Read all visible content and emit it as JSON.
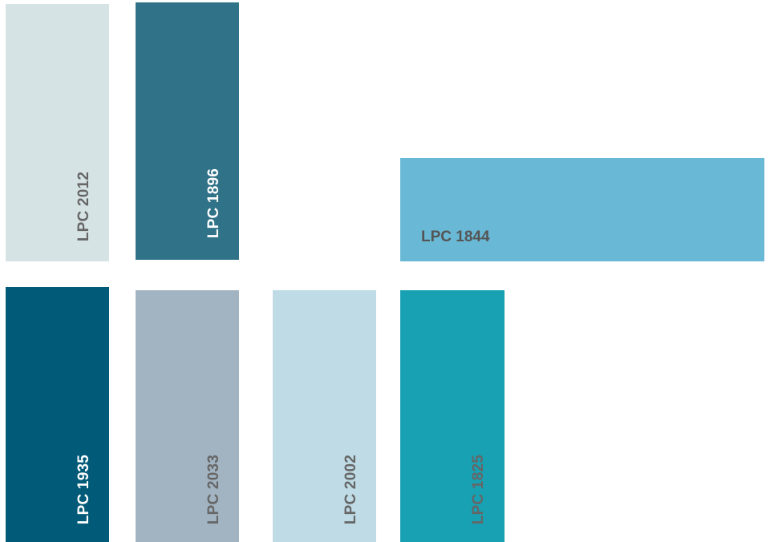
{
  "swatches": [
    {
      "label": "LPC 2012",
      "color": "#d6e3e5",
      "text_color": "#666666"
    },
    {
      "label": "LPC 1896",
      "color": "#307288",
      "text_color": "#ffffff"
    },
    {
      "label": "LPC 1844",
      "color": "#69b9d6",
      "text_color": "#555555"
    },
    {
      "label": "LPC 1935",
      "color": "#005a78",
      "text_color": "#ffffff"
    },
    {
      "label": "LPC 2033",
      "color": "#a2b4c2",
      "text_color": "#666666"
    },
    {
      "label": "LPC 2002",
      "color": "#bedbe6",
      "text_color": "#666666"
    },
    {
      "label": "LPC 1825",
      "color": "#17a1b3",
      "text_color": "#666666"
    }
  ]
}
